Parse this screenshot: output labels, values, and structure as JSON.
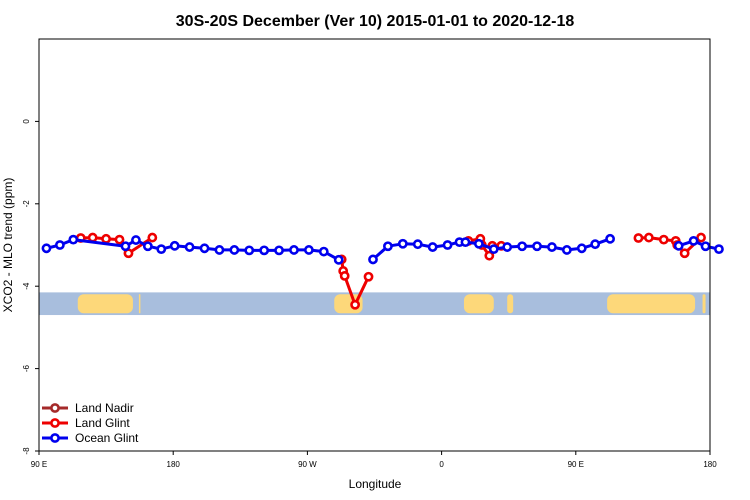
{
  "chart_data": {
    "type": "line",
    "title": "30S-20S December (Ver 10)   2015-01-01 to 2020-12-18",
    "xlabel": "Longitude",
    "ylabel": "XCO2 - MLO trend (ppm)",
    "xlim": [
      90,
      540
    ],
    "ylim": [
      -8,
      2
    ],
    "x_ticks": [
      {
        "value": 90,
        "label": "90 E"
      },
      {
        "value": 180,
        "label": "180"
      },
      {
        "value": 270,
        "label": "90 W"
      },
      {
        "value": 360,
        "label": "0"
      },
      {
        "value": 450,
        "label": "90 E"
      },
      {
        "value": 540,
        "label": "180"
      }
    ],
    "y_ticks": [
      {
        "value": 0,
        "label": "0"
      },
      {
        "value": -2,
        "label": "-2"
      },
      {
        "value": -4,
        "label": "-4"
      },
      {
        "value": -6,
        "label": "-6"
      },
      {
        "value": -8,
        "label": "-8"
      }
    ],
    "grid": false,
    "legend_position": "bottom-left",
    "map_strip": {
      "y_top": -4.15,
      "y_bottom": -4.7,
      "ocean_color": "#a8bedd",
      "land_color": "#fdd87a",
      "land_spans": [
        [
          116,
          153
        ],
        [
          157,
          157.5
        ],
        [
          288,
          307
        ],
        [
          375,
          395
        ],
        [
          404,
          408
        ],
        [
          471,
          530
        ],
        [
          535,
          537
        ]
      ]
    },
    "series": [
      {
        "name": "Land Nadir",
        "color": "#a52a2a",
        "segments": []
      },
      {
        "name": "Land Glint",
        "color": "#ee0000",
        "segments": [
          [
            [
              118,
              -2.83
            ],
            [
              126,
              -2.82
            ],
            [
              135,
              -2.85
            ],
            [
              144,
              -2.87
            ],
            [
              150,
              -3.2
            ],
            [
              166,
              -2.82
            ]
          ],
          [
            [
              293,
              -3.35
            ],
            [
              294,
              -3.63
            ],
            [
              295,
              -3.75
            ],
            [
              302,
              -4.45
            ],
            [
              311,
              -3.77
            ]
          ],
          [
            [
              378,
              -2.9
            ],
            [
              386,
              -2.85
            ],
            [
              387,
              -3.0
            ],
            [
              392,
              -3.26
            ],
            [
              394,
              -3.02
            ],
            [
              400,
              -3.02
            ]
          ],
          [
            [
              492,
              -2.83
            ],
            [
              499,
              -2.82
            ],
            [
              509,
              -2.87
            ],
            [
              517,
              -2.9
            ],
            [
              518,
              -3.0
            ],
            [
              523,
              -3.2
            ],
            [
              534,
              -2.82
            ]
          ]
        ]
      },
      {
        "name": "Ocean Glint",
        "color": "#0000ee",
        "segments": [
          [
            [
              95,
              -3.08
            ],
            [
              104,
              -3.0
            ],
            [
              113,
              -2.87
            ],
            [
              148,
              -3.03
            ],
            [
              155,
              -2.88
            ],
            [
              163,
              -3.03
            ],
            [
              172,
              -3.1
            ],
            [
              181,
              -3.02
            ],
            [
              191,
              -3.05
            ],
            [
              201,
              -3.08
            ],
            [
              211,
              -3.12
            ],
            [
              221,
              -3.12
            ],
            [
              231,
              -3.13
            ],
            [
              241,
              -3.13
            ],
            [
              251,
              -3.13
            ],
            [
              261,
              -3.12
            ],
            [
              271,
              -3.12
            ],
            [
              281,
              -3.16
            ],
            [
              291,
              -3.36
            ]
          ],
          [
            [
              314,
              -3.35
            ],
            [
              324,
              -3.03
            ],
            [
              334,
              -2.97
            ],
            [
              344,
              -2.98
            ],
            [
              354,
              -3.05
            ],
            [
              364,
              -3.0
            ],
            [
              372,
              -2.93
            ]
          ],
          [
            [
              376,
              -2.93
            ],
            [
              385,
              -2.97
            ],
            [
              395,
              -3.1
            ],
            [
              404,
              -3.05
            ],
            [
              414,
              -3.03
            ],
            [
              424,
              -3.03
            ],
            [
              434,
              -3.05
            ],
            [
              444,
              -3.12
            ],
            [
              454,
              -3.08
            ],
            [
              463,
              -2.98
            ],
            [
              473,
              -2.85
            ]
          ],
          [
            [
              519,
              -3.02
            ],
            [
              529,
              -2.9
            ],
            [
              537,
              -3.03
            ],
            [
              546,
              -3.1
            ]
          ]
        ]
      }
    ]
  }
}
